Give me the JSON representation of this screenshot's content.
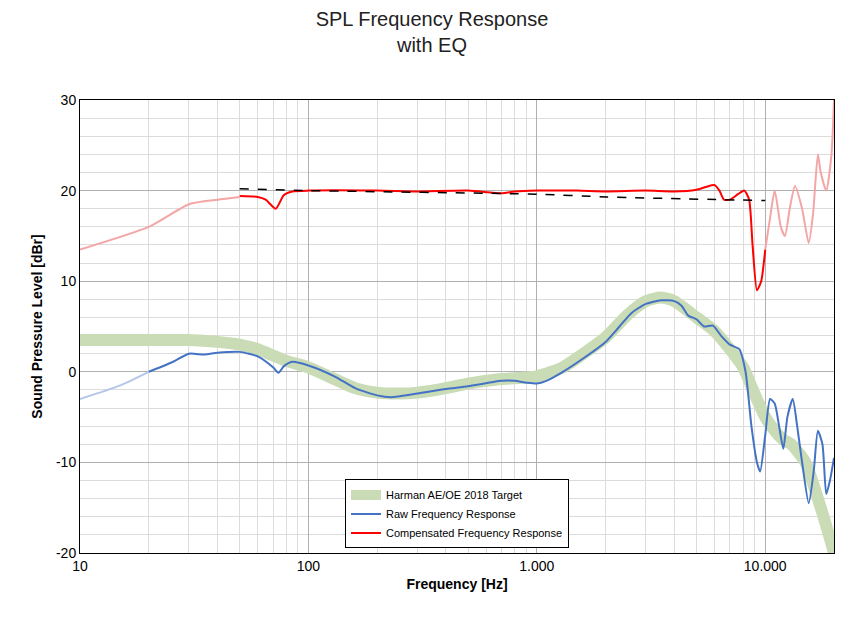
{
  "chart_data": {
    "type": "line",
    "title": "SPL Frequency Response\nwith EQ",
    "x_label": "Frequency [Hz]",
    "y_label": "Sound Pressure Level [dBr]",
    "log": "x",
    "grid": true,
    "legend": "bottom",
    "xlim": [
      10,
      20000
    ],
    "xticks": [
      10,
      100,
      {
        "value": 1000,
        "label": "1.000"
      },
      {
        "value": 10000,
        "label": "10.000"
      }
    ],
    "ylim": [
      -20,
      30
    ],
    "yticks": [
      -20,
      -10,
      0,
      10,
      20,
      30
    ],
    "series": [
      {
        "name": "Harman AE/OE 2018 Target",
        "color": "#c9dcb6",
        "line_style": "thick",
        "x": [
          10,
          20,
          30,
          40,
          50,
          60,
          70,
          80,
          100,
          130,
          160,
          200,
          250,
          300,
          400,
          500,
          700,
          1000,
          1300,
          1600,
          2000,
          2500,
          3000,
          3500,
          4000,
          5000,
          6000,
          7000,
          8000,
          9000,
          10000,
          11000,
          12000,
          13000,
          15000,
          17000,
          19000,
          20000
        ],
        "values": [
          3.5,
          3.5,
          3.5,
          3.3,
          3.0,
          2.5,
          1.8,
          1.2,
          0.5,
          -0.8,
          -1.8,
          -2.3,
          -2.4,
          -2.3,
          -1.8,
          -1.3,
          -0.8,
          -0.5,
          0.5,
          2,
          3.8,
          6.3,
          7.8,
          8.2,
          7.8,
          6,
          4.5,
          2.5,
          0.5,
          -2.5,
          -5,
          -6.5,
          -7.5,
          -8,
          -10,
          -14,
          -18,
          -20
        ]
      },
      {
        "name": "Raw Frequency Response",
        "color": "#4472c4",
        "line_style": "solid",
        "x": [
          20,
          25,
          30,
          35,
          40,
          50,
          60,
          70,
          74,
          78,
          85,
          100,
          130,
          160,
          200,
          230,
          300,
          400,
          500,
          700,
          800,
          900,
          1000,
          1100,
          1300,
          1600,
          2000,
          2300,
          2600,
          3000,
          3500,
          4000,
          4300,
          4600,
          5000,
          5400,
          5900,
          6400,
          7000,
          7700,
          8200,
          8700,
          9200,
          9500,
          10000,
          10500,
          11000,
          11500,
          12000,
          12500,
          13200,
          13800,
          14500,
          15500,
          16300,
          17000,
          17800,
          18500,
          19200,
          20000
        ],
        "values": [
          0,
          1,
          2,
          1.9,
          2.1,
          2.2,
          1.7,
          0.5,
          -0.1,
          0.6,
          1.1,
          0.7,
          -0.5,
          -1.8,
          -2.6,
          -2.8,
          -2.4,
          -1.9,
          -1.6,
          -1.0,
          -1.0,
          -1.2,
          -1.3,
          -1,
          0,
          1.5,
          3.3,
          5,
          6.5,
          7.5,
          7.9,
          7.8,
          7.3,
          6.2,
          5.8,
          5,
          5.1,
          4,
          3,
          2.5,
          0,
          -6,
          -10,
          -11,
          -7,
          -3,
          -3.5,
          -6,
          -8.5,
          -5,
          -3,
          -6,
          -10,
          -14.5,
          -11,
          -6.5,
          -8,
          -13.5,
          -12,
          -9.5
        ]
      },
      {
        "name": "Raw Frequency Response",
        "color": "#b4c7e7",
        "line_style": "solid",
        "x": [
          10,
          15,
          20
        ],
        "values": [
          -3,
          -1.5,
          0
        ]
      },
      {
        "name": "Compensated Frequency Response",
        "color": "#ff0000",
        "line_style": "solid",
        "x": [
          50,
          60,
          65,
          72,
          78,
          85,
          100,
          200,
          300,
          500,
          700,
          800,
          1000,
          1500,
          2000,
          3000,
          4000,
          5000,
          5500,
          6000,
          6300,
          6600,
          7000,
          7600,
          8100,
          8500,
          8800,
          9200,
          9600,
          10000
        ],
        "values": [
          19.4,
          19.3,
          19.0,
          18.0,
          19.5,
          19.9,
          20.0,
          20.0,
          19.9,
          20.0,
          19.7,
          19.9,
          20.0,
          20.0,
          19.9,
          20.0,
          19.9,
          20.1,
          20.4,
          20.6,
          20,
          19.0,
          19.0,
          19.6,
          20.0,
          19,
          14,
          9,
          10,
          13.5
        ]
      },
      {
        "name": "Compensated Frequency Response",
        "color": "#f4a6a6",
        "line_style": "solid",
        "x": [
          10,
          20,
          30,
          40,
          50
        ],
        "values": [
          13.5,
          16,
          18.5,
          19,
          19.3
        ]
      },
      {
        "name": "Compensated Frequency Response",
        "color": "#f4a6a6",
        "line_style": "solid",
        "x": [
          10000,
          10500,
          11000,
          11700,
          12200,
          12800,
          13500,
          14500,
          15500,
          16200,
          17000,
          17500,
          18500,
          19500,
          20000
        ],
        "values": [
          13.5,
          17,
          20,
          16,
          15,
          18,
          20.5,
          18,
          14.2,
          17.5,
          24,
          22,
          20,
          24,
          30
        ]
      },
      {
        "name": null,
        "color": "#000000",
        "line_style": "dashed",
        "x": [
          50,
          100,
          1000,
          2000,
          10000
        ],
        "values": [
          20.2,
          20.0,
          19.6,
          19.3,
          18.9
        ]
      }
    ]
  }
}
